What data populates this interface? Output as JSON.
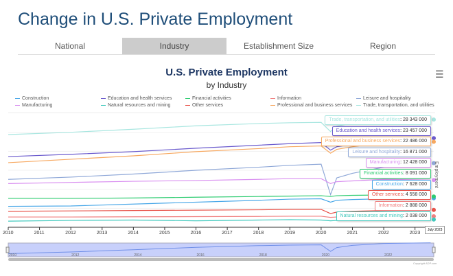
{
  "page": {
    "title": "Change in U.S. Private Employment",
    "tabs": [
      "National",
      "Industry",
      "Establishment Size",
      "Region"
    ],
    "active_tab": 1
  },
  "chart_data": {
    "type": "line",
    "title": "U.S. Private Employment",
    "subtitle": "by Industry",
    "ylabel": "Employment",
    "ylim": [
      0,
      30000000
    ],
    "xlim": [
      2010,
      2023.6
    ],
    "x": [
      2010,
      2012,
      2014,
      2016,
      2018,
      2019,
      2020,
      2020.3,
      2020.5,
      2021,
      2022,
      2023.5
    ],
    "x_ticks": [
      "2010",
      "2011",
      "2012",
      "2013",
      "2014",
      "2015",
      "2016",
      "2017",
      "2018",
      "2019",
      "2020",
      "2021",
      "2022",
      "2023"
    ],
    "navigator_ticks": [
      "2010",
      "2012",
      "2014",
      "2016",
      "2018",
      "2020",
      "2022"
    ],
    "tooltip_date": "July 2023",
    "copyright": "Copyright ADP.com",
    "series": [
      {
        "name": "Construction",
        "color": "#4aa8e8",
        "values": [
          5.5,
          5.6,
          6.1,
          6.6,
          7.1,
          7.4,
          7.5,
          6.6,
          7.1,
          7.3,
          7.5,
          7.63
        ],
        "label_value": "7 628 000"
      },
      {
        "name": "Education and health services",
        "color": "#6a5acd",
        "values": [
          18.6,
          19.2,
          19.9,
          20.8,
          21.6,
          22.0,
          22.3,
          20.3,
          21.2,
          21.8,
          22.6,
          23.46
        ],
        "label_value": "23 457 000"
      },
      {
        "name": "Financial activities",
        "color": "#2ecc71",
        "values": [
          7.6,
          7.6,
          7.7,
          7.9,
          8.1,
          8.2,
          8.3,
          8.1,
          8.3,
          8.4,
          8.5,
          8.09
        ],
        "label_value": "8 091 000"
      },
      {
        "name": "Information",
        "color": "#f08080",
        "values": [
          2.7,
          2.7,
          2.75,
          2.8,
          2.85,
          2.9,
          2.9,
          2.6,
          2.7,
          2.8,
          2.95,
          2.89
        ],
        "label_value": "2 888 000"
      },
      {
        "name": "Leisure and hospitality",
        "color": "#8fa8d8",
        "values": [
          12.6,
          13.2,
          14.0,
          15.0,
          15.8,
          16.3,
          16.6,
          8.6,
          13.0,
          14.2,
          15.8,
          16.87
        ],
        "label_value": "16 871 000"
      },
      {
        "name": "Manufacturing",
        "color": "#d98ff0",
        "values": [
          11.5,
          11.8,
          12.1,
          12.3,
          12.6,
          12.8,
          12.8,
          11.5,
          12.0,
          12.2,
          12.6,
          12.43
        ],
        "label_value": "12 428 000"
      },
      {
        "name": "Natural resources and mining",
        "color": "#40c9bd",
        "values": [
          1.6,
          1.8,
          1.9,
          1.7,
          1.9,
          2.0,
          1.9,
          1.7,
          1.8,
          1.9,
          2.0,
          2.04
        ],
        "label_value": "2 038 000"
      },
      {
        "name": "Other services",
        "color": "#e8534a",
        "values": [
          4.2,
          4.3,
          4.4,
          4.5,
          4.6,
          4.7,
          4.7,
          3.6,
          4.0,
          4.2,
          4.4,
          4.56
        ],
        "label_value": "4 558 000"
      },
      {
        "name": "Professional and business services",
        "color": "#f7a860",
        "values": [
          17.0,
          17.9,
          18.8,
          19.9,
          20.7,
          21.2,
          21.4,
          19.5,
          20.5,
          21.2,
          22.2,
          22.49
        ],
        "label_value": "22 486 000"
      },
      {
        "name": "Trade, transportation, and utilities",
        "color": "#a8e6e0",
        "values": [
          24.4,
          25.0,
          25.8,
          26.7,
          27.3,
          27.5,
          27.6,
          25.2,
          26.6,
          27.4,
          28.1,
          28.34
        ],
        "label_value": "28 343 000"
      }
    ]
  }
}
